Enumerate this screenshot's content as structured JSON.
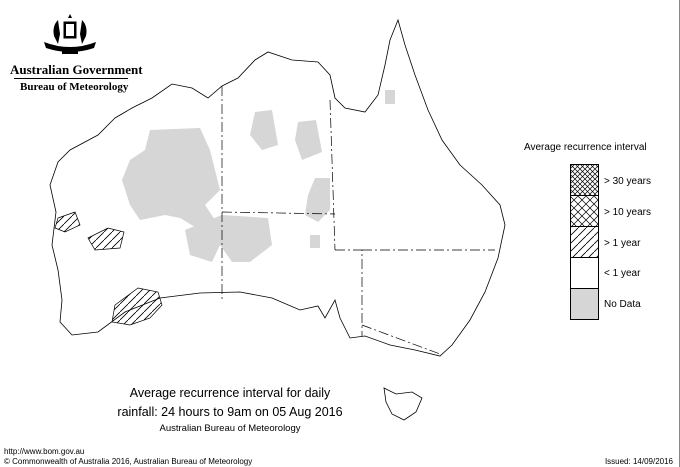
{
  "header": {
    "government": "Australian Government",
    "agency": "Bureau of Meteorology"
  },
  "legend": {
    "title": "Average recurrence interval",
    "items": [
      {
        "label": "> 30 years",
        "pattern": "fine-crosshatch"
      },
      {
        "label": "> 10 years",
        "pattern": "crosshatch"
      },
      {
        "label": "> 1 year",
        "pattern": "diagonal-hatch"
      },
      {
        "label": "< 1 year",
        "pattern": "none"
      },
      {
        "label": "No Data",
        "pattern": "gray",
        "color": "#d6d6d6"
      }
    ]
  },
  "caption": {
    "line1": "Average recurrence interval for daily",
    "line2": "rainfall: 24 hours to 9am on 05 Aug 2016",
    "line3": "Australian Bureau of Meteorology"
  },
  "footer": {
    "url": "http://www.bom.gov.au",
    "copyright": "© Commonwealth of Australia 2016, Australian Bureau of Meteorology",
    "issued": "Issued: 14/09/2016"
  }
}
